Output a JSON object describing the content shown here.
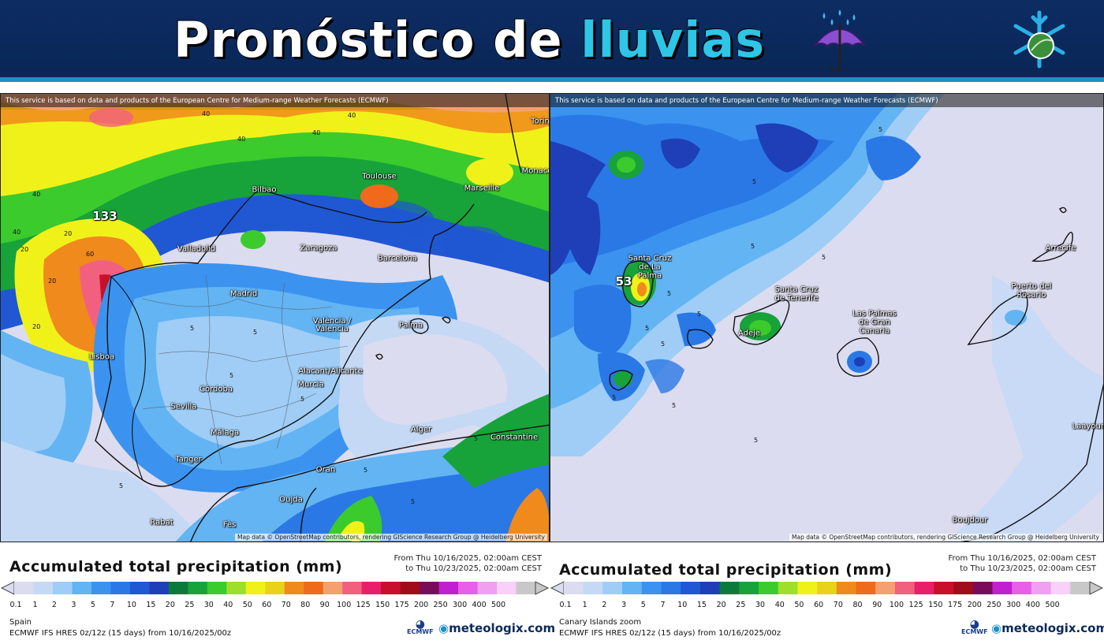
{
  "header": {
    "title_part1": "Pronóstico de ",
    "title_part2": "lluvias",
    "umbrella_icon": "umbrella-rain-icon",
    "logo_icon": "snowflake-leaf-logo-icon",
    "bg_color": "#0c2c63",
    "accent_color": "#2ec5e6"
  },
  "colors": {
    "scale": [
      "#dcdcf0",
      "#c5d9f5",
      "#9fcdf6",
      "#63b4f3",
      "#3b93ef",
      "#2a78e6",
      "#2057d3",
      "#1e3fb8",
      "#0a7a3b",
      "#18a23a",
      "#3bcb2c",
      "#9ddf2a",
      "#f1f11a",
      "#e8d21a",
      "#f08a1c",
      "#f06a1c",
      "#f4a070",
      "#f26080",
      "#e8206a",
      "#c8102a",
      "#a00c1a",
      "#7a0a5a",
      "#c020d0",
      "#e860e8",
      "#f0a0f0",
      "#f8d0f8",
      "#c8c8c8"
    ]
  },
  "left_map": {
    "notice": "This service is based on data and products of the European Centre for Medium-range Weather Forecasts (ECMWF)",
    "credit": "Map data © OpenStreetMap contributors, rendering GIScience Research Group @ Heidelberg University",
    "cities": {
      "bilbao": "Bilbao",
      "toulouse": "Toulouse",
      "marseille": "Marseille",
      "monaco": "Monaco",
      "torino": "Torin",
      "valladolid": "Valladolid",
      "zaragoza": "Zaragoza",
      "barcelona": "Barcelona",
      "madrid": "Madrid",
      "valencia": "València / Valencia",
      "palma": "Palma",
      "lisboa": "Lisboa",
      "alicante": "Alacant/Alicante",
      "murcia": "Murcia",
      "cordoba": "Córdoba",
      "sevilla": "Sevilla",
      "malaga": "Málaga",
      "alger": "Alger",
      "constantine": "Constantine",
      "tanger": "Tanger",
      "oran": "Oran",
      "oujda": "Oujda",
      "rabat": "Rabat",
      "fes": "Fès"
    },
    "max_value": "133",
    "contour_labels": [
      "40",
      "40",
      "40",
      "40",
      "40",
      "20",
      "20",
      "20",
      "40",
      "20",
      "60",
      "5",
      "5",
      "5",
      "5",
      "5",
      "5",
      "5",
      "5"
    ]
  },
  "right_map": {
    "notice": "This service is based on data and products of the European Centre for Medium-range Weather Forecasts (ECMWF)",
    "credit": "Map data © OpenStreetMap contributors, rendering GIScience Research Group @ Heidelberg University",
    "cities": {
      "santa_cruz_palma": "Santa Cruz de La Palma",
      "santa_cruz_tenerife": "Santa Cruz de Tenerife",
      "adeje": "Adeje",
      "las_palmas": "Las Palmas de Gran Canaria",
      "puerto_rosario": "Puerto del Rosario",
      "arrecife": "Arrecife",
      "laayoune": "Laayoune",
      "boujdour": "Boujdour"
    },
    "max_value": "53",
    "contour_labels": [
      "5",
      "5",
      "5",
      "5",
      "5",
      "5",
      "5",
      "5",
      "5",
      "5",
      "5"
    ]
  },
  "legend_left": {
    "title": "Accumulated total precipitation (mm)",
    "date_from": "From Thu 10/16/2025, 02:00am CEST",
    "date_to": "to Thu 10/23/2025, 02:00am CEST",
    "ticks": [
      "0.1",
      "1",
      "2",
      "3",
      "5",
      "7",
      "10",
      "15",
      "20",
      "25",
      "30",
      "40",
      "50",
      "60",
      "70",
      "80",
      "90",
      "100",
      "125",
      "150",
      "175",
      "200",
      "250",
      "300",
      "400",
      "500"
    ],
    "region": "Spain",
    "model": "ECMWF IFS HRES 0z/12z (15 days) from 10/16/2025/00z",
    "ecmwf": "ECMWF",
    "brand": "meteologix.com"
  },
  "legend_right": {
    "title": "Accumulated total precipitation (mm)",
    "date_from": "From Thu 10/16/2025, 02:00am CEST",
    "date_to": "to Thu 10/23/2025, 02:00am CEST",
    "ticks": [
      "0.1",
      "1",
      "2",
      "3",
      "5",
      "7",
      "10",
      "15",
      "20",
      "25",
      "30",
      "40",
      "50",
      "60",
      "70",
      "80",
      "90",
      "100",
      "125",
      "150",
      "175",
      "200",
      "250",
      "300",
      "400",
      "500"
    ],
    "region": "Canary Islands zoom",
    "model": "ECMWF IFS HRES 0z/12z (15 days) from 10/16/2025/00z",
    "ecmwf": "ECMWF",
    "brand": "meteologix.com"
  }
}
